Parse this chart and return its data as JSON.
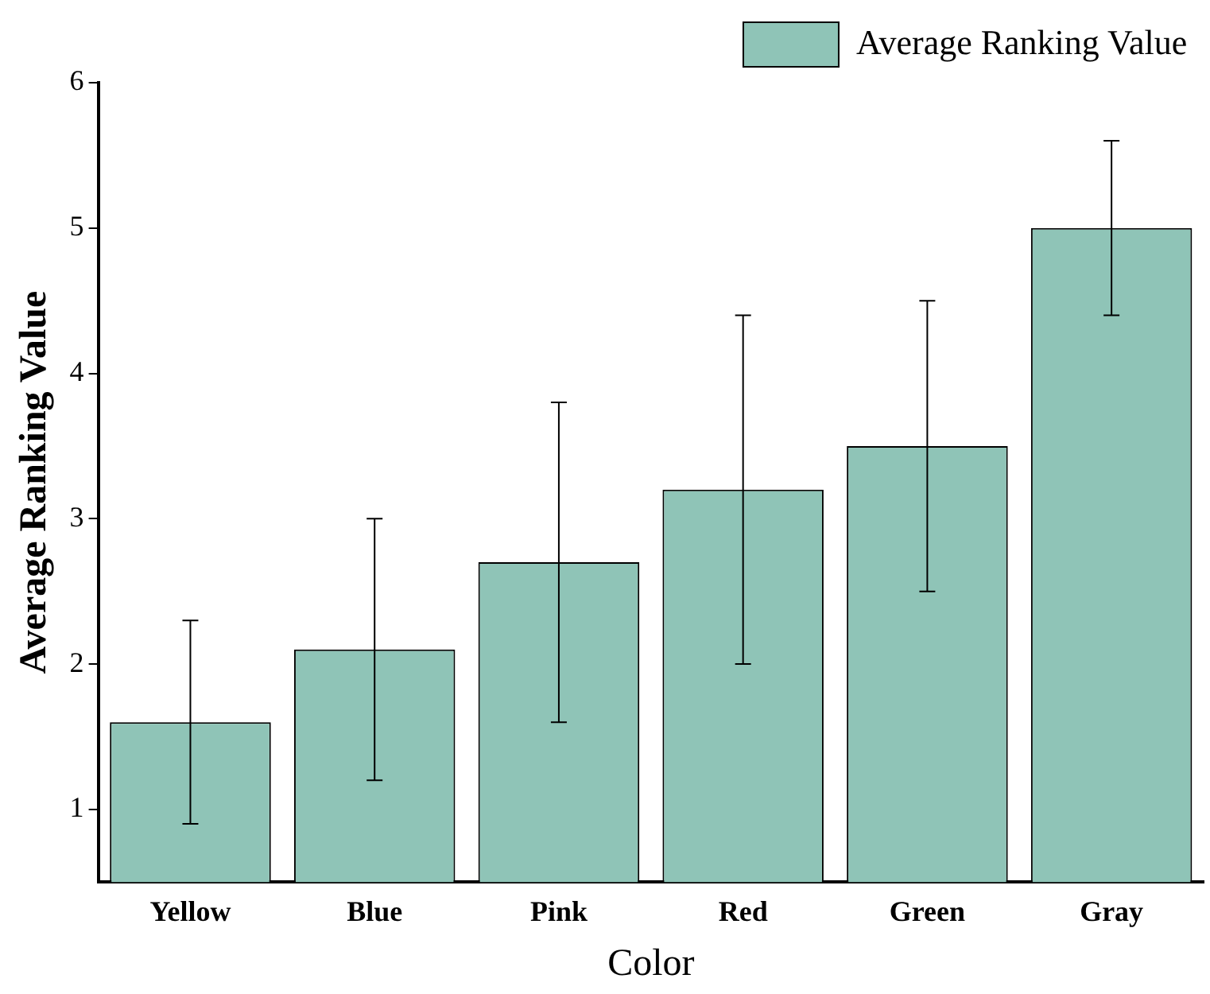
{
  "chart_data": {
    "type": "bar",
    "xlabel": "Color",
    "ylabel": "Average Ranking Value",
    "categories": [
      "Yellow",
      "Blue",
      "Pink",
      "Red",
      "Green",
      "Gray"
    ],
    "series": [
      {
        "name": "Average Ranking Value",
        "color": "#8fc4b7",
        "values": [
          1.6,
          2.1,
          2.7,
          3.2,
          3.5,
          5.0
        ],
        "errors": [
          [
            0.9,
            2.3
          ],
          [
            1.2,
            3.0
          ],
          [
            1.6,
            3.8
          ],
          [
            2.0,
            4.4
          ],
          [
            2.5,
            4.5
          ],
          [
            4.4,
            5.6
          ]
        ]
      }
    ],
    "ylim": [
      0.5,
      6
    ],
    "yticks": [
      1,
      2,
      3,
      4,
      5,
      6
    ],
    "grid": false,
    "legend": "top right"
  }
}
